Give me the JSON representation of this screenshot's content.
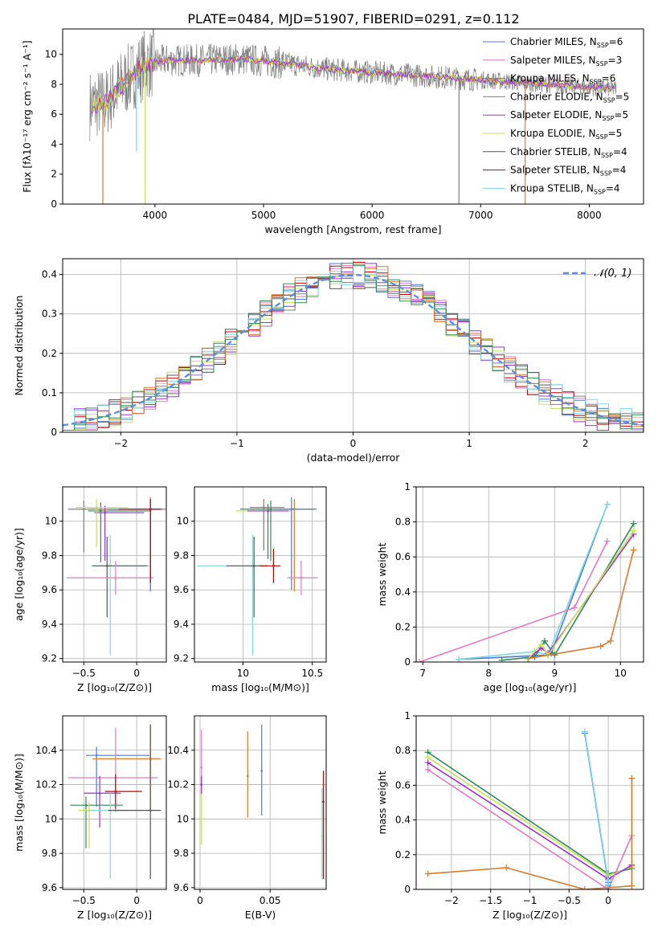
{
  "figure": {
    "title": "PLATE=0484, MJD=51907, FIBERID=0291, z=0.112"
  },
  "colors": [
    "#4e79d9",
    "#e377c2",
    "#7f7f7f",
    "#808080",
    "#9b30d0",
    "#c5e05a",
    "#555555",
    "#c00000",
    "#7fd8e0",
    "#d9792b",
    "#2e8b57"
  ],
  "models": [
    "Chabrier MILES",
    "Salpeter MILES",
    "Kroupa MILES",
    "Chabrier ELODIE",
    "Salpeter ELODIE",
    "Kroupa ELODIE",
    "Chabrier STELIB",
    "Salpeter STELIB",
    "Kroupa STELIB"
  ],
  "chart_data": [
    {
      "id": "spectrum",
      "type": "line",
      "xlabel": "wavelength [Angstrom, rest frame]",
      "ylabel": "Flux [fλ10⁻¹⁷ erg cm⁻² s⁻¹ A⁻¹]",
      "xlim": [
        3150,
        8500
      ],
      "ylim": [
        0,
        11.7
      ],
      "xticks": [
        4000,
        5000,
        6000,
        7000,
        8000
      ],
      "yticks": [
        0,
        2,
        4,
        6,
        8,
        10
      ],
      "grid": false,
      "legend_position": "top-right",
      "legend": [
        {
          "label": "Chabrier MILES, N",
          "sub": "SSP",
          "n": "=6",
          "color": "#4e79d9"
        },
        {
          "label": "Salpeter MILES, N",
          "sub": "SSP",
          "n": "=3",
          "color": "#e377c2"
        },
        {
          "label": "Kroupa MILES, N",
          "sub": "SSP",
          "n": "=6",
          "color": "#7f7f7f"
        },
        {
          "label": "Chabrier ELODIE, N",
          "sub": "SSP",
          "n": "=5",
          "color": "#808080"
        },
        {
          "label": "Salpeter ELODIE, N",
          "sub": "SSP",
          "n": "=5",
          "color": "#9b30d0"
        },
        {
          "label": "Kroupa ELODIE, N",
          "sub": "SSP",
          "n": "=5",
          "color": "#c5e05a"
        },
        {
          "label": "Chabrier STELIB, N",
          "sub": "SSP",
          "n": "=4",
          "color": "#555555"
        },
        {
          "label": "Salpeter STELIB, N",
          "sub": "SSP",
          "n": "=4",
          "color": "#c00000"
        },
        {
          "label": "Kroupa STELIB, N",
          "sub": "SSP",
          "n": "=4",
          "color": "#7fd8e0"
        }
      ],
      "continuum": {
        "x": [
          3400,
          3550,
          3700,
          3900,
          4100,
          4400,
          4800,
          5200,
          5600,
          6000,
          6400,
          6800,
          7200,
          7600,
          8000,
          8250
        ],
        "y": [
          6.6,
          6.8,
          8.0,
          9.3,
          9.6,
          9.6,
          9.7,
          9.4,
          9.0,
          8.8,
          8.6,
          8.4,
          8.2,
          8.0,
          7.8,
          7.7
        ]
      },
      "dips": [
        {
          "x": 3520,
          "color": "#d9792b",
          "to": 0
        },
        {
          "x": 3910,
          "color": "#c5e05a",
          "to": 0
        },
        {
          "x": 3830,
          "color": "#7fd8e0",
          "to": 3.5
        },
        {
          "x": 6800,
          "color": "#808080",
          "to": 0
        },
        {
          "x": 7410,
          "color": "#d9792b",
          "to": 0
        }
      ]
    },
    {
      "id": "residuals",
      "type": "area",
      "xlabel": "(data-model)/error",
      "ylabel": "Normed distribution",
      "xlim": [
        -2.5,
        2.5
      ],
      "ylim": [
        0,
        0.44
      ],
      "xticks": [
        -2,
        -1,
        0,
        1,
        2
      ],
      "yticks": [
        0.0,
        0.1,
        0.2,
        0.3,
        0.4
      ],
      "grid": true,
      "legend_position": "top-right",
      "legend": [
        {
          "label": "𝒩(0, 1)",
          "color": "#5b8fd9"
        }
      ],
      "bins": 50
    },
    {
      "id": "age-vs-Z",
      "type": "scatter",
      "xlabel": "Z [log₁₀(Z/Z⊙)]",
      "ylabel": "age  [log₁₀(age/yr)]",
      "xlim": [
        -0.7,
        0.28
      ],
      "ylim": [
        9.18,
        10.2
      ],
      "xticks": [
        -0.5,
        0.0
      ],
      "yticks": [
        9.2,
        9.4,
        9.6,
        9.8,
        10.0
      ],
      "grid": true,
      "points": [
        {
          "x": -0.5,
          "y": 10.07,
          "xerr": [
            0.15,
            0.62
          ],
          "yerr": [
            0.25,
            0.05
          ],
          "c": 2
        },
        {
          "x": -0.34,
          "y": 10.06,
          "xerr": [
            0.12,
            0.48
          ],
          "yerr": [
            0.3,
            0.05
          ],
          "c": 10
        },
        {
          "x": -0.3,
          "y": 10.05,
          "xerr": [
            0.1,
            0.37
          ],
          "yerr": [
            0.28,
            0.04
          ],
          "c": 4
        },
        {
          "x": -0.38,
          "y": 10.08,
          "xerr": [
            0.2,
            0.3
          ],
          "yerr": [
            0.23,
            0.05
          ],
          "c": 5
        },
        {
          "x": -0.25,
          "y": 9.74,
          "xerr": [
            0.18,
            0.37
          ],
          "yerr": [
            0.52,
            0.18
          ],
          "c": 8
        },
        {
          "x": -0.28,
          "y": 9.74,
          "xerr": [
            0.14,
            0.38
          ],
          "yerr": [
            0.3,
            0.17
          ],
          "c": 6
        },
        {
          "x": -0.2,
          "y": 9.67,
          "xerr": [
            0.46,
            0.36
          ],
          "yerr": [
            0.1,
            0.1
          ],
          "c": 1
        },
        {
          "x": 0.13,
          "y": 10.07,
          "xerr": [
            0.5,
            0.15
          ],
          "yerr": [
            0.47,
            0.07
          ],
          "c": 9
        },
        {
          "x": 0.13,
          "y": 10.07,
          "xerr": [
            0.4,
            0.12
          ],
          "yerr": [
            0.48,
            0.06
          ],
          "c": 0
        },
        {
          "x": 0.13,
          "y": 10.07,
          "xerr": [
            0.3,
            0.1
          ],
          "yerr": [
            0.43,
            0.06
          ],
          "c": 7
        }
      ]
    },
    {
      "id": "age-vs-mass",
      "type": "scatter",
      "xlabel": "mass [log₁₀(M/M⊙)]",
      "ylabel": "",
      "xlim": [
        9.65,
        10.6
      ],
      "ylim": [
        9.18,
        10.2
      ],
      "xticks": [
        10.0,
        10.5
      ],
      "yticks": [
        9.2,
        9.4,
        9.6,
        9.8,
        10.0
      ],
      "grid": true,
      "points": [
        {
          "x": 10.07,
          "y": 9.74,
          "xerr": [
            0.4,
            0.1
          ],
          "yerr": [
            0.52,
            0.18
          ],
          "c": 8
        },
        {
          "x": 10.08,
          "y": 9.74,
          "xerr": [
            0.2,
            0.1
          ],
          "yerr": [
            0.3,
            0.17
          ],
          "c": 6
        },
        {
          "x": 10.22,
          "y": 9.74,
          "xerr": [
            0.1,
            0.05
          ],
          "yerr": [
            0.1,
            0.1
          ],
          "c": 7
        },
        {
          "x": 10.15,
          "y": 10.06,
          "xerr": [
            0.2,
            0.2
          ],
          "yerr": [
            0.23,
            0.05
          ],
          "c": 5
        },
        {
          "x": 10.18,
          "y": 10.06,
          "xerr": [
            0.15,
            0.15
          ],
          "yerr": [
            0.28,
            0.04
          ],
          "c": 4
        },
        {
          "x": 10.2,
          "y": 10.07,
          "xerr": [
            0.22,
            0.18
          ],
          "yerr": [
            0.3,
            0.05
          ],
          "c": 10
        },
        {
          "x": 10.15,
          "y": 10.08,
          "xerr": [
            0.1,
            0.15
          ],
          "yerr": [
            0.25,
            0.05
          ],
          "c": 2
        },
        {
          "x": 10.37,
          "y": 10.07,
          "xerr": [
            0.1,
            0.15
          ],
          "yerr": [
            0.48,
            0.06
          ],
          "c": 9
        },
        {
          "x": 10.35,
          "y": 10.07,
          "xerr": [
            0.1,
            0.18
          ],
          "yerr": [
            0.47,
            0.07
          ],
          "c": 0
        },
        {
          "x": 10.42,
          "y": 9.67,
          "xerr": [
            0.1,
            0.12
          ],
          "yerr": [
            0.1,
            0.1
          ],
          "c": 1
        }
      ]
    },
    {
      "id": "weight-vs-age",
      "type": "line",
      "xlabel": "age  [log₁₀(age/yr)]",
      "ylabel": "mass weight",
      "xlim": [
        6.9,
        10.35
      ],
      "ylim": [
        0,
        1.0
      ],
      "xticks": [
        7,
        8,
        9,
        10
      ],
      "yticks": [
        0.0,
        0.2,
        0.4,
        0.6,
        0.8,
        1.0
      ],
      "grid": true,
      "series": [
        {
          "c": 0,
          "x": [
            7.55,
            8.9,
            8.95,
            9.8
          ],
          "y": [
            0.015,
            0.04,
            0.05,
            0.9
          ]
        },
        {
          "c": 8,
          "x": [
            7.55,
            8.7,
            8.9,
            9.8
          ],
          "y": [
            0.015,
            0.06,
            0.04,
            0.9
          ]
        },
        {
          "c": 1,
          "x": [
            6.95,
            9.3,
            9.8
          ],
          "y": [
            0.0,
            0.31,
            0.69
          ]
        },
        {
          "c": 10,
          "x": [
            8.2,
            8.7,
            8.85,
            9.0,
            10.2
          ],
          "y": [
            0.01,
            0.03,
            0.12,
            0.04,
            0.79
          ]
        },
        {
          "c": 4,
          "x": [
            8.6,
            8.8,
            8.9,
            10.2
          ],
          "y": [
            0.02,
            0.08,
            0.05,
            0.73
          ]
        },
        {
          "c": 5,
          "x": [
            8.6,
            8.8,
            8.9,
            10.2
          ],
          "y": [
            0.02,
            0.1,
            0.04,
            0.75
          ]
        },
        {
          "c": 9,
          "x": [
            8.6,
            9.7,
            9.85,
            10.2
          ],
          "y": [
            0.02,
            0.09,
            0.12,
            0.64
          ]
        }
      ]
    },
    {
      "id": "mass-vs-Z",
      "type": "scatter",
      "xlabel": "Z [log₁₀(Z/Z⊙)]",
      "ylabel": "mass [log₁₀(M/M⊙)]",
      "xlim": [
        -0.7,
        0.28
      ],
      "ylim": [
        9.59,
        10.6
      ],
      "xticks": [
        -0.5,
        0.0
      ],
      "yticks": [
        9.6,
        9.8,
        10.0,
        10.2,
        10.4
      ],
      "grid": true,
      "points": [
        {
          "x": -0.38,
          "y": 10.37,
          "xerr": [
            0.1,
            0.5
          ],
          "yerr": [
            0.3,
            0.05
          ],
          "c": 0
        },
        {
          "x": 0.13,
          "y": 10.35,
          "xerr": [
            0.55,
            0.1
          ],
          "yerr": [
            0.3,
            0.2
          ],
          "c": 9
        },
        {
          "x": -0.2,
          "y": 10.24,
          "xerr": [
            0.45,
            0.4
          ],
          "yerr": [
            0.2,
            0.29
          ],
          "c": 1
        },
        {
          "x": -0.35,
          "y": 10.15,
          "xerr": [
            0.15,
            0.2
          ],
          "yerr": [
            0.2,
            0.1
          ],
          "c": 4
        },
        {
          "x": -0.2,
          "y": 10.16,
          "xerr": [
            0.1,
            0.25
          ],
          "yerr": [
            0.1,
            0.1
          ],
          "c": 7
        },
        {
          "x": -0.48,
          "y": 10.08,
          "xerr": [
            0.15,
            0.35
          ],
          "yerr": [
            0.25,
            0.05
          ],
          "c": 10
        },
        {
          "x": -0.45,
          "y": 10.05,
          "xerr": [
            0.1,
            0.4
          ],
          "yerr": [
            0.22,
            0.05
          ],
          "c": 5
        },
        {
          "x": -0.25,
          "y": 10.05,
          "xerr": [
            0.2,
            0.3
          ],
          "yerr": [
            0.4,
            0.1
          ],
          "c": 8
        },
        {
          "x": 0.13,
          "y": 10.05,
          "xerr": [
            0.4,
            0.1
          ],
          "yerr": [
            0.4,
            0.5
          ],
          "c": 6
        }
      ]
    },
    {
      "id": "mass-vs-EBV",
      "type": "scatter",
      "xlabel": "E(B-V)",
      "ylabel": "",
      "xlim": [
        -0.004,
        0.09
      ],
      "ylim": [
        9.59,
        10.6
      ],
      "xticks": [
        0.0,
        0.05
      ],
      "yticks": [
        9.6,
        9.8,
        10.0,
        10.2,
        10.4
      ],
      "grid": true,
      "points": [
        {
          "x": 0.001,
          "y": 10.15,
          "yerr": [
            0.3,
            0.1
          ],
          "c": 5
        },
        {
          "x": 0.001,
          "y": 10.3,
          "yerr": [
            0.15,
            0.22
          ],
          "c": 1
        },
        {
          "x": 0.001,
          "y": 10.2,
          "yerr": [
            0.05,
            0.05
          ],
          "c": 4
        },
        {
          "x": 0.034,
          "y": 10.25,
          "yerr": [
            0.24,
            0.26
          ],
          "c": 9
        },
        {
          "x": 0.044,
          "y": 10.28,
          "yerr": [
            0.26,
            0.27
          ],
          "c": 0
        },
        {
          "x": 0.088,
          "y": 10.1,
          "yerr": [
            0.45,
            0.18
          ],
          "c": 7
        },
        {
          "x": 0.087,
          "y": 9.9,
          "yerr": [
            0.25,
            0.28
          ],
          "c": 8
        }
      ]
    },
    {
      "id": "weight-vs-Z",
      "type": "line",
      "xlabel": "Z [log₁₀(Z/Z⊙)]",
      "ylabel": "mass weight",
      "xlim": [
        -2.45,
        0.45
      ],
      "ylim": [
        0,
        1.0
      ],
      "xticks": [
        -2.0,
        -1.5,
        -1.0,
        -0.5,
        0.0
      ],
      "yticks": [
        0.0,
        0.2,
        0.4,
        0.6,
        0.8,
        1.0
      ],
      "grid": true,
      "series": [
        {
          "c": 10,
          "x": [
            -2.3,
            0.0,
            0.3
          ],
          "y": [
            0.79,
            0.09,
            0.12
          ]
        },
        {
          "c": 5,
          "x": [
            -2.3,
            0.0,
            0.3
          ],
          "y": [
            0.76,
            0.08,
            0.13
          ]
        },
        {
          "c": 4,
          "x": [
            -2.3,
            0.0,
            0.3
          ],
          "y": [
            0.73,
            0.06,
            0.14
          ]
        },
        {
          "c": 1,
          "x": [
            -2.3,
            0.0,
            0.3
          ],
          "y": [
            0.69,
            0.0,
            0.31
          ]
        },
        {
          "c": 9,
          "x": [
            -2.3,
            -1.3,
            -0.3,
            0.3,
            0.3
          ],
          "y": [
            0.09,
            0.125,
            0.0,
            0.02,
            0.64
          ]
        },
        {
          "c": 0,
          "x": [
            -0.3,
            0.0,
            0.0
          ],
          "y": [
            0.9,
            0.04,
            0.02
          ]
        },
        {
          "c": 8,
          "x": [
            -0.3,
            0.0,
            0.0
          ],
          "y": [
            0.91,
            0.05,
            0.03
          ]
        }
      ]
    }
  ]
}
